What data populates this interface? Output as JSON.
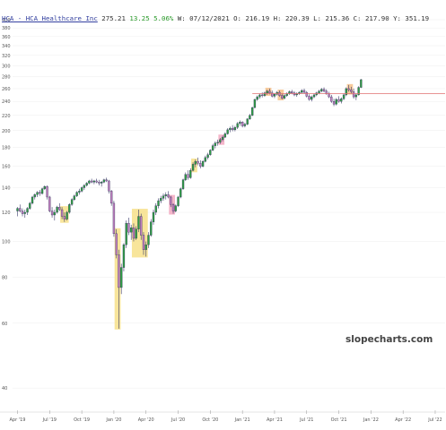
{
  "header": {
    "title": "HCA - HCA Healthcare Inc",
    "price": "275.21",
    "change": "13.25 5.06%",
    "stats": "W: 07/12/2021 O: 216.19 H: 220.39 L: 215.36 C: 217.90 Y: 351.19"
  },
  "watermark": "slopecharts.com",
  "colors": {
    "up": "#2e9e44",
    "down": "#c080c0",
    "highlight_yellow": "#f7e08a",
    "highlight_orange": "#f6c28c",
    "highlight_pink": "#f2a8c0",
    "baseline": "#e07070",
    "grid": "#eeeeee"
  },
  "chart_data": {
    "type": "candlestick",
    "x_ticks": [
      "Apr '19",
      "Jul '19",
      "Oct '19",
      "Jan '20",
      "Apr '20",
      "Jul '20",
      "Oct '20",
      "Jan '21",
      "Apr '21",
      "Jul '21",
      "Oct '21",
      "Jan '22",
      "Apr '22",
      "Jul '22"
    ],
    "y_ticks": [
      40,
      60,
      80,
      100,
      120,
      140,
      160,
      180,
      200,
      220,
      240,
      260,
      280,
      300,
      320,
      340,
      360,
      380,
      400
    ],
    "y_scale": "log",
    "ylim": [
      36,
      400
    ],
    "x_range_weeks": [
      -2,
      173
    ],
    "reference_line": 252,
    "candles": [
      {
        "w": 0,
        "o": 121,
        "h": 124,
        "l": 117,
        "c": 123
      },
      {
        "w": 1,
        "o": 123,
        "h": 126,
        "l": 120,
        "c": 121
      },
      {
        "w": 2,
        "o": 121,
        "h": 123,
        "l": 117,
        "c": 119
      },
      {
        "w": 3,
        "o": 119,
        "h": 122,
        "l": 116,
        "c": 120
      },
      {
        "w": 4,
        "o": 120,
        "h": 124,
        "l": 118,
        "c": 123
      },
      {
        "w": 5,
        "o": 123,
        "h": 128,
        "l": 122,
        "c": 127
      },
      {
        "w": 6,
        "o": 127,
        "h": 133,
        "l": 126,
        "c": 132
      },
      {
        "w": 7,
        "o": 132,
        "h": 135,
        "l": 130,
        "c": 134
      },
      {
        "w": 8,
        "o": 134,
        "h": 137,
        "l": 132,
        "c": 136
      },
      {
        "w": 9,
        "o": 136,
        "h": 138,
        "l": 133,
        "c": 135
      },
      {
        "w": 10,
        "o": 135,
        "h": 140,
        "l": 134,
        "c": 139
      },
      {
        "w": 11,
        "o": 139,
        "h": 142,
        "l": 138,
        "c": 141
      },
      {
        "w": 12,
        "o": 141,
        "h": 142,
        "l": 130,
        "c": 132
      },
      {
        "w": 13,
        "o": 132,
        "h": 133,
        "l": 120,
        "c": 121
      },
      {
        "w": 14,
        "o": 121,
        "h": 124,
        "l": 116,
        "c": 118
      },
      {
        "w": 15,
        "o": 118,
        "h": 122,
        "l": 114,
        "c": 120
      },
      {
        "w": 16,
        "o": 120,
        "h": 125,
        "l": 119,
        "c": 124
      },
      {
        "w": 17,
        "o": 124,
        "h": 127,
        "l": 121,
        "c": 122
      },
      {
        "w": 18,
        "o": 122,
        "h": 124,
        "l": 115,
        "c": 117
      },
      {
        "w": 19,
        "o": 117,
        "h": 120,
        "l": 113,
        "c": 115
      },
      {
        "w": 20,
        "o": 115,
        "h": 121,
        "l": 114,
        "c": 120
      },
      {
        "w": 21,
        "o": 120,
        "h": 127,
        "l": 119,
        "c": 126
      },
      {
        "w": 22,
        "o": 126,
        "h": 131,
        "l": 125,
        "c": 130
      },
      {
        "w": 23,
        "o": 130,
        "h": 134,
        "l": 129,
        "c": 133
      },
      {
        "w": 24,
        "o": 133,
        "h": 137,
        "l": 132,
        "c": 136
      },
      {
        "w": 25,
        "o": 136,
        "h": 139,
        "l": 134,
        "c": 137
      },
      {
        "w": 26,
        "o": 137,
        "h": 141,
        "l": 136,
        "c": 140
      },
      {
        "w": 27,
        "o": 140,
        "h": 143,
        "l": 138,
        "c": 142
      },
      {
        "w": 28,
        "o": 142,
        "h": 145,
        "l": 141,
        "c": 144
      },
      {
        "w": 29,
        "o": 144,
        "h": 147,
        "l": 143,
        "c": 146
      },
      {
        "w": 30,
        "o": 146,
        "h": 148,
        "l": 144,
        "c": 145
      },
      {
        "w": 31,
        "o": 145,
        "h": 147,
        "l": 143,
        "c": 146
      },
      {
        "w": 32,
        "o": 146,
        "h": 148,
        "l": 144,
        "c": 145
      },
      {
        "w": 33,
        "o": 145,
        "h": 147,
        "l": 142,
        "c": 144
      },
      {
        "w": 34,
        "o": 144,
        "h": 146,
        "l": 141,
        "c": 145
      },
      {
        "w": 35,
        "o": 145,
        "h": 148,
        "l": 144,
        "c": 147
      },
      {
        "w": 36,
        "o": 147,
        "h": 149,
        "l": 145,
        "c": 146
      },
      {
        "w": 37,
        "o": 146,
        "h": 147,
        "l": 135,
        "c": 137
      },
      {
        "w": 38,
        "o": 137,
        "h": 138,
        "l": 125,
        "c": 127
      },
      {
        "w": 39,
        "o": 127,
        "h": 129,
        "l": 103,
        "c": 105
      },
      {
        "w": 40,
        "o": 105,
        "h": 108,
        "l": 90,
        "c": 92
      },
      {
        "w": 41,
        "o": 92,
        "h": 95,
        "l": 58,
        "c": 75
      },
      {
        "w": 42,
        "o": 75,
        "h": 87,
        "l": 72,
        "c": 85
      },
      {
        "w": 43,
        "o": 85,
        "h": 99,
        "l": 83,
        "c": 98
      },
      {
        "w": 44,
        "o": 98,
        "h": 114,
        "l": 96,
        "c": 112
      },
      {
        "w": 45,
        "o": 112,
        "h": 116,
        "l": 104,
        "c": 106
      },
      {
        "w": 46,
        "o": 106,
        "h": 111,
        "l": 101,
        "c": 109
      },
      {
        "w": 47,
        "o": 109,
        "h": 112,
        "l": 100,
        "c": 102
      },
      {
        "w": 48,
        "o": 102,
        "h": 110,
        "l": 101,
        "c": 108
      },
      {
        "w": 49,
        "o": 108,
        "h": 122,
        "l": 106,
        "c": 117
      },
      {
        "w": 50,
        "o": 117,
        "h": 119,
        "l": 101,
        "c": 104
      },
      {
        "w": 51,
        "o": 104,
        "h": 106,
        "l": 92,
        "c": 95
      },
      {
        "w": 52,
        "o": 95,
        "h": 100,
        "l": 91,
        "c": 98
      },
      {
        "w": 53,
        "o": 98,
        "h": 106,
        "l": 96,
        "c": 104
      },
      {
        "w": 54,
        "o": 104,
        "h": 115,
        "l": 103,
        "c": 113
      },
      {
        "w": 55,
        "o": 113,
        "h": 122,
        "l": 111,
        "c": 120
      },
      {
        "w": 56,
        "o": 120,
        "h": 127,
        "l": 118,
        "c": 125
      },
      {
        "w": 57,
        "o": 125,
        "h": 131,
        "l": 123,
        "c": 129
      },
      {
        "w": 58,
        "o": 129,
        "h": 133,
        "l": 127,
        "c": 131
      },
      {
        "w": 59,
        "o": 131,
        "h": 135,
        "l": 129,
        "c": 133
      },
      {
        "w": 60,
        "o": 133,
        "h": 136,
        "l": 130,
        "c": 134
      },
      {
        "w": 61,
        "o": 134,
        "h": 137,
        "l": 131,
        "c": 132
      },
      {
        "w": 62,
        "o": 132,
        "h": 133,
        "l": 124,
        "c": 126
      },
      {
        "w": 63,
        "o": 126,
        "h": 127,
        "l": 119,
        "c": 121
      },
      {
        "w": 64,
        "o": 121,
        "h": 126,
        "l": 120,
        "c": 125
      },
      {
        "w": 65,
        "o": 125,
        "h": 133,
        "l": 124,
        "c": 132
      },
      {
        "w": 66,
        "o": 132,
        "h": 140,
        "l": 131,
        "c": 139
      },
      {
        "w": 67,
        "o": 139,
        "h": 148,
        "l": 138,
        "c": 147
      },
      {
        "w": 68,
        "o": 147,
        "h": 154,
        "l": 146,
        "c": 152
      },
      {
        "w": 69,
        "o": 152,
        "h": 156,
        "l": 147,
        "c": 149
      },
      {
        "w": 70,
        "o": 149,
        "h": 158,
        "l": 148,
        "c": 156
      },
      {
        "w": 71,
        "o": 156,
        "h": 164,
        "l": 155,
        "c": 162
      },
      {
        "w": 72,
        "o": 162,
        "h": 167,
        "l": 159,
        "c": 165
      },
      {
        "w": 73,
        "o": 165,
        "h": 169,
        "l": 161,
        "c": 163
      },
      {
        "w": 74,
        "o": 163,
        "h": 166,
        "l": 158,
        "c": 160
      },
      {
        "w": 75,
        "o": 160,
        "h": 166,
        "l": 159,
        "c": 165
      },
      {
        "w": 76,
        "o": 165,
        "h": 171,
        "l": 164,
        "c": 169
      },
      {
        "w": 77,
        "o": 169,
        "h": 174,
        "l": 167,
        "c": 172
      },
      {
        "w": 78,
        "o": 172,
        "h": 178,
        "l": 171,
        "c": 177
      },
      {
        "w": 79,
        "o": 177,
        "h": 184,
        "l": 176,
        "c": 182
      },
      {
        "w": 80,
        "o": 182,
        "h": 187,
        "l": 179,
        "c": 185
      },
      {
        "w": 81,
        "o": 185,
        "h": 189,
        "l": 182,
        "c": 186
      },
      {
        "w": 82,
        "o": 186,
        "h": 191,
        "l": 184,
        "c": 189
      },
      {
        "w": 83,
        "o": 189,
        "h": 194,
        "l": 187,
        "c": 192
      },
      {
        "w": 84,
        "o": 192,
        "h": 198,
        "l": 191,
        "c": 196
      },
      {
        "w": 85,
        "o": 196,
        "h": 203,
        "l": 195,
        "c": 201
      },
      {
        "w": 86,
        "o": 201,
        "h": 205,
        "l": 198,
        "c": 203
      },
      {
        "w": 87,
        "o": 203,
        "h": 207,
        "l": 199,
        "c": 201
      },
      {
        "w": 88,
        "o": 201,
        "h": 206,
        "l": 199,
        "c": 204
      },
      {
        "w": 89,
        "o": 204,
        "h": 211,
        "l": 202,
        "c": 209
      },
      {
        "w": 90,
        "o": 209,
        "h": 213,
        "l": 206,
        "c": 211
      },
      {
        "w": 91,
        "o": 211,
        "h": 212,
        "l": 204,
        "c": 206
      },
      {
        "w": 92,
        "o": 206,
        "h": 210,
        "l": 204,
        "c": 208
      },
      {
        "w": 93,
        "o": 208,
        "h": 216,
        "l": 207,
        "c": 215
      },
      {
        "w": 94,
        "o": 215,
        "h": 222,
        "l": 214,
        "c": 220
      },
      {
        "w": 95,
        "o": 220,
        "h": 232,
        "l": 219,
        "c": 231
      },
      {
        "w": 96,
        "o": 231,
        "h": 244,
        "l": 230,
        "c": 243
      },
      {
        "w": 97,
        "o": 243,
        "h": 249,
        "l": 241,
        "c": 247
      },
      {
        "w": 98,
        "o": 247,
        "h": 252,
        "l": 244,
        "c": 250
      },
      {
        "w": 99,
        "o": 250,
        "h": 254,
        "l": 246,
        "c": 249
      },
      {
        "w": 100,
        "o": 249,
        "h": 255,
        "l": 247,
        "c": 253
      },
      {
        "w": 101,
        "o": 253,
        "h": 258,
        "l": 250,
        "c": 256
      },
      {
        "w": 102,
        "o": 256,
        "h": 260,
        "l": 251,
        "c": 253
      },
      {
        "w": 103,
        "o": 253,
        "h": 257,
        "l": 246,
        "c": 248
      },
      {
        "w": 104,
        "o": 248,
        "h": 253,
        "l": 245,
        "c": 251
      },
      {
        "w": 105,
        "o": 251,
        "h": 256,
        "l": 249,
        "c": 254
      },
      {
        "w": 106,
        "o": 254,
        "h": 257,
        "l": 247,
        "c": 249
      },
      {
        "w": 107,
        "o": 249,
        "h": 252,
        "l": 243,
        "c": 245
      },
      {
        "w": 108,
        "o": 245,
        "h": 251,
        "l": 243,
        "c": 249
      },
      {
        "w": 109,
        "o": 249,
        "h": 254,
        "l": 247,
        "c": 252
      },
      {
        "w": 110,
        "o": 252,
        "h": 257,
        "l": 250,
        "c": 255
      },
      {
        "w": 111,
        "o": 255,
        "h": 258,
        "l": 251,
        "c": 253
      },
      {
        "w": 112,
        "o": 253,
        "h": 256,
        "l": 248,
        "c": 250
      },
      {
        "w": 113,
        "o": 250,
        "h": 254,
        "l": 247,
        "c": 252
      },
      {
        "w": 114,
        "o": 252,
        "h": 256,
        "l": 250,
        "c": 254
      },
      {
        "w": 115,
        "o": 254,
        "h": 259,
        "l": 252,
        "c": 257
      },
      {
        "w": 116,
        "o": 257,
        "h": 260,
        "l": 252,
        "c": 254
      },
      {
        "w": 117,
        "o": 254,
        "h": 256,
        "l": 246,
        "c": 248
      },
      {
        "w": 118,
        "o": 248,
        "h": 251,
        "l": 241,
        "c": 243
      },
      {
        "w": 119,
        "o": 243,
        "h": 249,
        "l": 240,
        "c": 247
      },
      {
        "w": 120,
        "o": 247,
        "h": 252,
        "l": 245,
        "c": 250
      },
      {
        "w": 121,
        "o": 250,
        "h": 255,
        "l": 248,
        "c": 253
      },
      {
        "w": 122,
        "o": 253,
        "h": 258,
        "l": 251,
        "c": 256
      },
      {
        "w": 123,
        "o": 256,
        "h": 261,
        "l": 254,
        "c": 259
      },
      {
        "w": 124,
        "o": 259,
        "h": 262,
        "l": 254,
        "c": 256
      },
      {
        "w": 125,
        "o": 256,
        "h": 259,
        "l": 250,
        "c": 252
      },
      {
        "w": 126,
        "o": 252,
        "h": 255,
        "l": 245,
        "c": 247
      },
      {
        "w": 127,
        "o": 247,
        "h": 250,
        "l": 238,
        "c": 240
      },
      {
        "w": 128,
        "o": 240,
        "h": 244,
        "l": 233,
        "c": 236
      },
      {
        "w": 129,
        "o": 236,
        "h": 245,
        "l": 234,
        "c": 243
      },
      {
        "w": 130,
        "o": 243,
        "h": 248,
        "l": 238,
        "c": 240
      },
      {
        "w": 131,
        "o": 240,
        "h": 246,
        "l": 237,
        "c": 244
      },
      {
        "w": 132,
        "o": 244,
        "h": 252,
        "l": 242,
        "c": 250
      },
      {
        "w": 133,
        "o": 250,
        "h": 262,
        "l": 248,
        "c": 260
      },
      {
        "w": 134,
        "o": 260,
        "h": 266,
        "l": 255,
        "c": 258
      },
      {
        "w": 135,
        "o": 258,
        "h": 263,
        "l": 252,
        "c": 255
      },
      {
        "w": 136,
        "o": 255,
        "h": 260,
        "l": 244,
        "c": 247
      },
      {
        "w": 137,
        "o": 247,
        "h": 252,
        "l": 242,
        "c": 250
      },
      {
        "w": 138,
        "o": 250,
        "h": 264,
        "l": 249,
        "c": 262
      },
      {
        "w": 139,
        "o": 262,
        "h": 276,
        "l": 261,
        "c": 275
      }
    ],
    "highlights": [
      {
        "w_start": 18,
        "w_end": 20,
        "color": "yellow"
      },
      {
        "w_start": 40,
        "w_end": 41,
        "color": "yellow"
      },
      {
        "w_start": 47,
        "w_end": 52,
        "color": "yellow"
      },
      {
        "w_start": 62,
        "w_end": 63,
        "color": "pink"
      },
      {
        "w_start": 71,
        "w_end": 72,
        "color": "yellow"
      },
      {
        "w_start": 82,
        "w_end": 83,
        "color": "pink"
      },
      {
        "w_start": 101,
        "w_end": 102,
        "color": "orange"
      },
      {
        "w_start": 106,
        "w_end": 107,
        "color": "orange"
      },
      {
        "w_start": 134,
        "w_end": 135,
        "color": "orange"
      }
    ]
  }
}
